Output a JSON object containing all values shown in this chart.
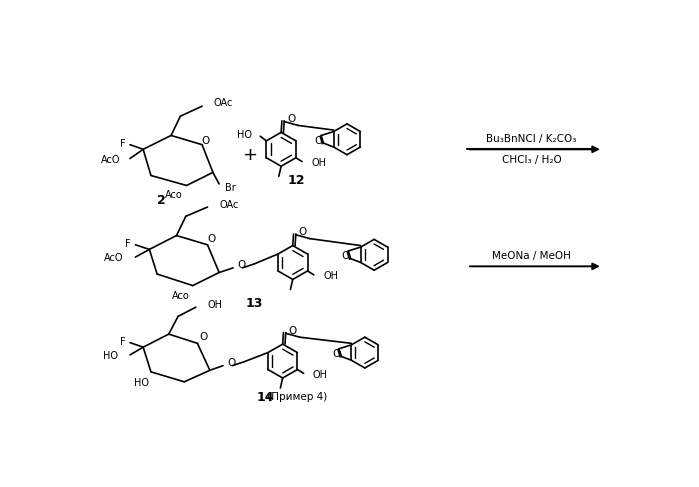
{
  "bg": "#ffffff",
  "arrow1_top": "Bu₃BnNCl / K₂CO₃",
  "arrow1_bot": "CHCl₃ / H₂O",
  "arrow2": "MeONa / MeOH",
  "lbl2": "2",
  "lbl12": "12",
  "lbl13": "13",
  "lbl14": "14",
  "lbl14b": " (Пример 4)"
}
